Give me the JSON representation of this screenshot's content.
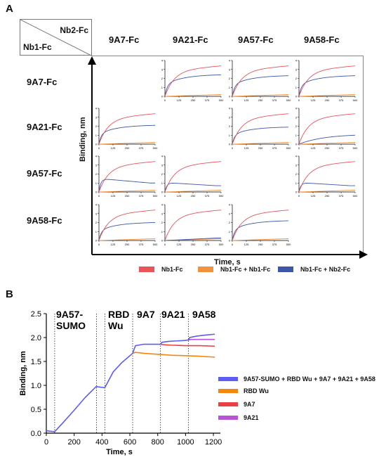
{
  "panel_a": {
    "label": "A",
    "corner_top": "Nb2-Fc",
    "corner_bottom": "Nb1-Fc",
    "columns": [
      "9A7-Fc",
      "9A21-Fc",
      "9A57-Fc",
      "9A58-Fc"
    ],
    "rows": [
      "9A7-Fc",
      "9A21-Fc",
      "9A57-Fc",
      "9A58-Fc"
    ],
    "ylabel": "Binding, nm",
    "xlabel": "Time, s",
    "legend": [
      {
        "name": "Nb1-Fc",
        "color": "#e8545a"
      },
      {
        "name": "Nb1-Fc + Nb1-Fc",
        "color": "#f2923a"
      },
      {
        "name": "Nb1-Fc + Nb2-Fc",
        "color": "#3d57a6"
      }
    ]
  },
  "panel_b": {
    "label": "B",
    "ylabel": "Binding, nm",
    "xlabel": "Time, s",
    "phases": [
      {
        "label": "9A57-\nSUMO"
      },
      {
        "label": "RBD\nWu"
      },
      {
        "label": "9A7"
      },
      {
        "label": "9A21"
      },
      {
        "label": "9A58"
      }
    ],
    "legend": [
      {
        "name": "9A57-SUMO + RBD Wu + 9A7 + 9A21 + 9A58",
        "color": "#5b5ef0"
      },
      {
        "name": "RBD Wu",
        "color": "#f5860f"
      },
      {
        "name": "9A7",
        "color": "#ec3f3f"
      },
      {
        "name": "9A21",
        "color": "#b653d6"
      }
    ]
  },
  "chart_data": [
    {
      "type": "line",
      "panel": "A",
      "description_grid": "4x4 matrix; diagonal cells empty",
      "x_ticks": [
        0,
        125,
        250,
        375,
        500
      ],
      "y_ticks": [
        0,
        1,
        2,
        3,
        4
      ],
      "xlim": [
        0,
        500
      ],
      "ylim": [
        0,
        4
      ],
      "xlabel": "Time, s",
      "ylabel": "Binding, nm",
      "cells": [
        {
          "row": "9A7-Fc",
          "col": "9A21-Fc",
          "red_plateau": 3.4,
          "orange_plateau": 0.2,
          "blue_plateau": 2.4,
          "blue_shape": "rise"
        },
        {
          "row": "9A7-Fc",
          "col": "9A57-Fc",
          "red_plateau": 3.4,
          "orange_plateau": 0.2,
          "blue_plateau": 2.3,
          "blue_shape": "rise"
        },
        {
          "row": "9A7-Fc",
          "col": "9A58-Fc",
          "red_plateau": 3.4,
          "orange_plateau": 0.2,
          "blue_plateau": 2.3,
          "blue_shape": "rise"
        },
        {
          "row": "9A21-Fc",
          "col": "9A7-Fc",
          "red_plateau": 3.4,
          "orange_plateau": 0.2,
          "blue_plateau": 2.1,
          "blue_shape": "rise"
        },
        {
          "row": "9A21-Fc",
          "col": "9A57-Fc",
          "red_plateau": 3.4,
          "orange_plateau": 0.2,
          "blue_plateau": 1.9,
          "blue_shape": "rise"
        },
        {
          "row": "9A21-Fc",
          "col": "9A58-Fc",
          "red_plateau": 3.4,
          "orange_plateau": 0.2,
          "blue_plateau": 1.0,
          "blue_shape": "slow"
        },
        {
          "row": "9A57-Fc",
          "col": "9A7-Fc",
          "red_plateau": 3.4,
          "orange_plateau": 0.2,
          "blue_plateau": 1.0,
          "blue_shape": "peak"
        },
        {
          "row": "9A57-Fc",
          "col": "9A21-Fc",
          "red_plateau": 3.4,
          "orange_plateau": 0.2,
          "blue_plateau": 0.7,
          "blue_shape": "peak"
        },
        {
          "row": "9A57-Fc",
          "col": "9A58-Fc",
          "red_plateau": 3.4,
          "orange_plateau": 0.2,
          "blue_plateau": 0.7,
          "blue_shape": "peak"
        },
        {
          "row": "9A58-Fc",
          "col": "9A7-Fc",
          "red_plateau": 3.4,
          "orange_plateau": 0.2,
          "blue_plateau": 2.0,
          "blue_shape": "rise"
        },
        {
          "row": "9A58-Fc",
          "col": "9A21-Fc",
          "red_plateau": 3.4,
          "orange_plateau": 0.2,
          "blue_plateau": 0.3,
          "blue_shape": "flat"
        },
        {
          "row": "9A58-Fc",
          "col": "9A57-Fc",
          "red_plateau": 3.4,
          "orange_plateau": 0.2,
          "blue_plateau": 2.2,
          "blue_shape": "rise"
        }
      ]
    },
    {
      "type": "line",
      "panel": "B",
      "xlabel": "Time, s",
      "ylabel": "Binding, nm",
      "xlim": [
        0,
        1250
      ],
      "ylim": [
        0,
        2.5
      ],
      "x_ticks": [
        0,
        200,
        400,
        600,
        800,
        1000,
        1200
      ],
      "y_ticks": [
        0.0,
        0.5,
        1.0,
        1.5,
        2.0,
        2.5
      ],
      "phase_boundaries": [
        60,
        360,
        420,
        620,
        820,
        1020
      ],
      "series": [
        {
          "name": "9A57-SUMO + RBD Wu + 9A7 + 9A21 + 9A58",
          "x": [
            0,
            60,
            120,
            200,
            280,
            360,
            370,
            420,
            480,
            540,
            600,
            620,
            640,
            700,
            760,
            820,
            830,
            880,
            940,
            1000,
            1020,
            1030,
            1080,
            1140,
            1210
          ],
          "y": [
            0.05,
            0.03,
            0.22,
            0.48,
            0.75,
            0.98,
            0.97,
            0.95,
            1.28,
            1.47,
            1.62,
            1.67,
            1.83,
            1.86,
            1.86,
            1.86,
            1.9,
            1.92,
            1.93,
            1.94,
            1.95,
            2.0,
            2.03,
            2.05,
            2.07
          ]
        },
        {
          "name": "RBD Wu",
          "x": [
            620,
            640,
            700,
            800,
            900,
            1000,
            1100,
            1210
          ],
          "y": [
            1.67,
            1.69,
            1.67,
            1.65,
            1.63,
            1.62,
            1.61,
            1.59
          ]
        },
        {
          "name": "9A7",
          "x": [
            820,
            840,
            900,
            1000,
            1100,
            1210
          ],
          "y": [
            1.86,
            1.85,
            1.84,
            1.83,
            1.83,
            1.82
          ]
        },
        {
          "name": "9A21",
          "x": [
            1020,
            1040,
            1100,
            1160,
            1210
          ],
          "y": [
            1.95,
            1.96,
            1.96,
            1.96,
            1.96
          ]
        }
      ]
    }
  ]
}
